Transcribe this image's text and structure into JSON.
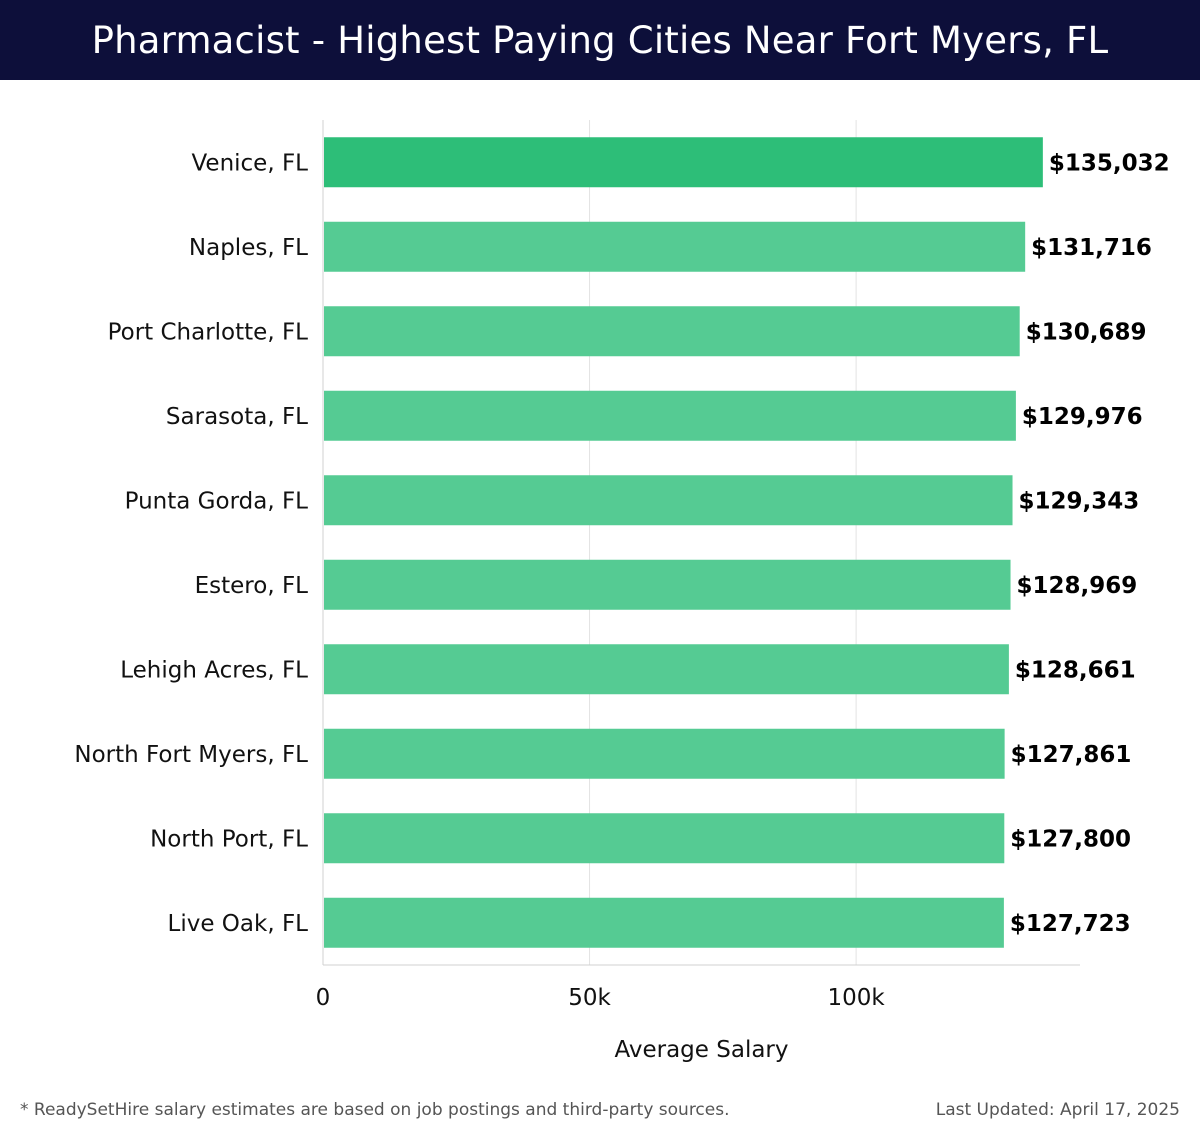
{
  "header": {
    "title": "Pharmacist - Highest Paying Cities Near Fort Myers, FL"
  },
  "chart_data": {
    "type": "bar",
    "orientation": "horizontal",
    "categories": [
      "Venice, FL",
      "Naples, FL",
      "Port Charlotte, FL",
      "Sarasota, FL",
      "Punta Gorda, FL",
      "Estero, FL",
      "Lehigh Acres, FL",
      "North Fort Myers, FL",
      "North Port, FL",
      "Live Oak, FL"
    ],
    "values": [
      135032,
      131716,
      130689,
      129976,
      129343,
      128969,
      128661,
      127861,
      127800,
      127723
    ],
    "value_labels": [
      "$135,032",
      "$131,716",
      "$130,689",
      "$129,976",
      "$129,343",
      "$128,969",
      "$128,661",
      "$127,861",
      "$127,800",
      "$127,723"
    ],
    "xlabel": "Average Salary",
    "xlim": [
      0,
      142000
    ],
    "xticks": [
      0,
      50000,
      100000
    ],
    "xtick_labels": [
      "0",
      "50k",
      "100k"
    ],
    "grid": true,
    "colors": {
      "top_bar": "#2dbe78",
      "bars": "#55cb93",
      "grid": "#e3e3e3",
      "axis": "#d0d0d0"
    }
  },
  "footer": {
    "note": "* ReadySetHire salary estimates are based on job postings and third-party sources.",
    "updated": "Last Updated: April 17, 2025"
  }
}
